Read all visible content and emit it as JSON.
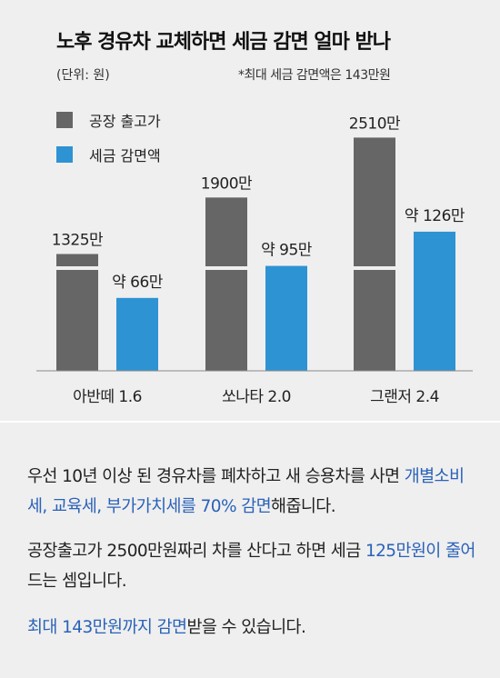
{
  "header": {
    "title": "노후 경유차 교체하면 세금 감면 얼마 받나",
    "unit": "(단위: 원)",
    "note": "*최대 세금 감면액은 143만원"
  },
  "legend": [
    {
      "label": "공장 출고가",
      "color": "#666666"
    },
    {
      "label": "세금 감면액",
      "color": "#2e93d3"
    }
  ],
  "chart_data": {
    "type": "bar",
    "categories": [
      "아반떼 1.6",
      "쏘나타 2.0",
      "그랜저 2.4"
    ],
    "series": [
      {
        "name": "공장 출고가",
        "values": [
          1325,
          1900,
          2510
        ],
        "labels": [
          "1325만",
          "1900만",
          "2510만"
        ],
        "color": "#666666"
      },
      {
        "name": "세금 감면액",
        "values": [
          66,
          95,
          126
        ],
        "labels": [
          "약 66만",
          "약 95만",
          "약 126만"
        ],
        "color": "#2e93d3"
      }
    ],
    "axis_break": true,
    "grid": false
  },
  "text": {
    "p1_a": "우선 10년 이상 된 경유차를 폐차하고 새 승용차를 사면 ",
    "p1_b": "개별소비세, 교육세, 부가가치세를 70% 감면",
    "p1_c": "해줍니다.",
    "p2_a": "공장출고가 2500만원짜리 차를 산다고 하면 세금 ",
    "p2_b": "125만원이 줄어",
    "p2_c": "드는 셈입니다.",
    "p3_a": "최대 143만원까지 감면",
    "p3_b": "받을 수 있습니다."
  }
}
